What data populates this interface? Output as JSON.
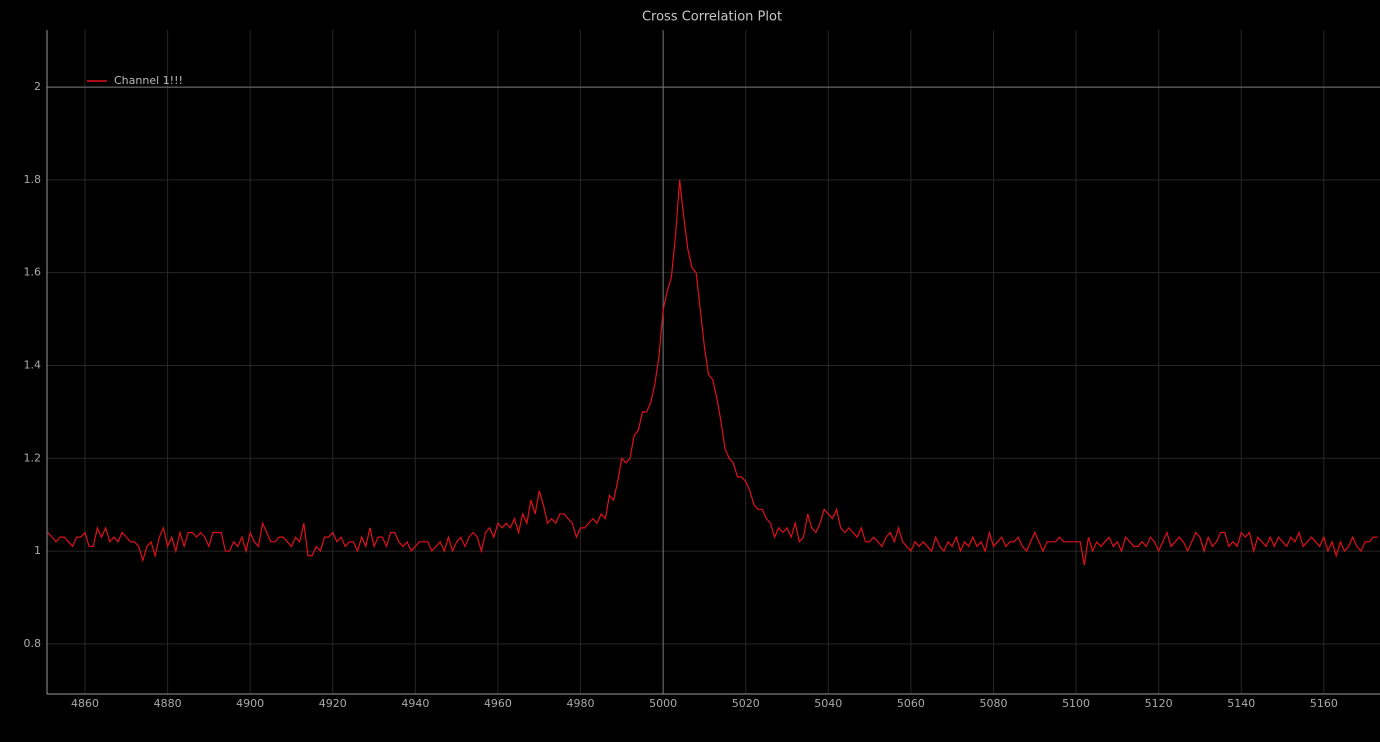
{
  "chart_data": {
    "type": "line",
    "title": "Cross Correlation Plot",
    "x": [
      4851,
      4852,
      4853,
      4854,
      4855,
      4856,
      4857,
      4858,
      4859,
      4860,
      4861,
      4862,
      4863,
      4864,
      4865,
      4866,
      4867,
      4868,
      4869,
      4870,
      4871,
      4872,
      4873,
      4874,
      4875,
      4876,
      4877,
      4878,
      4879,
      4880,
      4881,
      4882,
      4883,
      4884,
      4885,
      4886,
      4887,
      4888,
      4889,
      4890,
      4891,
      4892,
      4893,
      4894,
      4895,
      4896,
      4897,
      4898,
      4899,
      4900,
      4901,
      4902,
      4903,
      4904,
      4905,
      4906,
      4907,
      4908,
      4909,
      4910,
      4911,
      4912,
      4913,
      4914,
      4915,
      4916,
      4917,
      4918,
      4919,
      4920,
      4921,
      4922,
      4923,
      4924,
      4925,
      4926,
      4927,
      4928,
      4929,
      4930,
      4931,
      4932,
      4933,
      4934,
      4935,
      4936,
      4937,
      4938,
      4939,
      4940,
      4941,
      4942,
      4943,
      4944,
      4945,
      4946,
      4947,
      4948,
      4949,
      4950,
      4951,
      4952,
      4953,
      4954,
      4955,
      4956,
      4957,
      4958,
      4959,
      4960,
      4961,
      4962,
      4963,
      4964,
      4965,
      4966,
      4967,
      4968,
      4969,
      4970,
      4971,
      4972,
      4973,
      4974,
      4975,
      4976,
      4977,
      4978,
      4979,
      4980,
      4981,
      4982,
      4983,
      4984,
      4985,
      4986,
      4987,
      4988,
      4989,
      4990,
      4991,
      4992,
      4993,
      4994,
      4995,
      4996,
      4997,
      4998,
      4999,
      5000,
      5001,
      5002,
      5003,
      5004,
      5005,
      5006,
      5007,
      5008,
      5009,
      5010,
      5011,
      5012,
      5013,
      5014,
      5015,
      5016,
      5017,
      5018,
      5019,
      5020,
      5021,
      5022,
      5023,
      5024,
      5025,
      5026,
      5027,
      5028,
      5029,
      5030,
      5031,
      5032,
      5033,
      5034,
      5035,
      5036,
      5037,
      5038,
      5039,
      5040,
      5041,
      5042,
      5043,
      5044,
      5045,
      5046,
      5047,
      5048,
      5049,
      5050,
      5051,
      5052,
      5053,
      5054,
      5055,
      5056,
      5057,
      5058,
      5059,
      5060,
      5061,
      5062,
      5063,
      5064,
      5065,
      5066,
      5067,
      5068,
      5069,
      5070,
      5071,
      5072,
      5073,
      5074,
      5075,
      5076,
      5077,
      5078,
      5079,
      5080,
      5081,
      5082,
      5083,
      5084,
      5085,
      5086,
      5087,
      5088,
      5089,
      5090,
      5091,
      5092,
      5093,
      5094,
      5095,
      5096,
      5097,
      5098,
      5099,
      5100,
      5101,
      5102,
      5103,
      5104,
      5105,
      5106,
      5107,
      5108,
      5109,
      5110,
      5111,
      5112,
      5113,
      5114,
      5115,
      5116,
      5117,
      5118,
      5119,
      5120,
      5121,
      5122,
      5123,
      5124,
      5125,
      5126,
      5127,
      5128,
      5129,
      5130,
      5131,
      5132,
      5133,
      5134,
      5135,
      5136,
      5137,
      5138,
      5139,
      5140,
      5141,
      5142,
      5143,
      5144,
      5145,
      5146,
      5147,
      5148,
      5149,
      5150,
      5151,
      5152,
      5153,
      5154,
      5155,
      5156,
      5157,
      5158,
      5159,
      5160,
      5161,
      5162,
      5163,
      5164,
      5165,
      5166,
      5167,
      5168,
      5169,
      5170,
      5171,
      5172,
      5173
    ],
    "series": [
      {
        "name": "Channel 1!!!",
        "color": "#e0101a",
        "values": [
          1.04,
          1.03,
          1.02,
          1.03,
          1.03,
          1.02,
          1.01,
          1.03,
          1.03,
          1.04,
          1.01,
          1.01,
          1.05,
          1.03,
          1.05,
          1.02,
          1.03,
          1.02,
          1.04,
          1.03,
          1.02,
          1.02,
          1.01,
          0.98,
          1.01,
          1.02,
          0.99,
          1.03,
          1.05,
          1.01,
          1.03,
          1.0,
          1.04,
          1.01,
          1.04,
          1.04,
          1.03,
          1.04,
          1.03,
          1.01,
          1.04,
          1.04,
          1.04,
          1.0,
          1.0,
          1.02,
          1.01,
          1.03,
          1.0,
          1.04,
          1.02,
          1.01,
          1.06,
          1.04,
          1.02,
          1.02,
          1.03,
          1.03,
          1.02,
          1.01,
          1.03,
          1.02,
          1.06,
          0.99,
          0.99,
          1.01,
          1.0,
          1.03,
          1.03,
          1.04,
          1.02,
          1.03,
          1.01,
          1.02,
          1.02,
          1.0,
          1.03,
          1.01,
          1.05,
          1.01,
          1.03,
          1.03,
          1.01,
          1.04,
          1.04,
          1.02,
          1.01,
          1.02,
          1.0,
          1.01,
          1.02,
          1.02,
          1.02,
          1.0,
          1.01,
          1.02,
          1.0,
          1.03,
          1.0,
          1.02,
          1.03,
          1.01,
          1.03,
          1.04,
          1.03,
          1.0,
          1.04,
          1.05,
          1.03,
          1.06,
          1.05,
          1.06,
          1.05,
          1.07,
          1.04,
          1.08,
          1.06,
          1.11,
          1.08,
          1.13,
          1.1,
          1.06,
          1.07,
          1.06,
          1.08,
          1.08,
          1.07,
          1.06,
          1.03,
          1.05,
          1.05,
          1.06,
          1.07,
          1.06,
          1.08,
          1.07,
          1.12,
          1.11,
          1.15,
          1.2,
          1.19,
          1.2,
          1.25,
          1.26,
          1.3,
          1.3,
          1.32,
          1.36,
          1.42,
          1.52,
          1.56,
          1.59,
          1.68,
          1.8,
          1.72,
          1.65,
          1.61,
          1.6,
          1.52,
          1.44,
          1.38,
          1.37,
          1.33,
          1.28,
          1.22,
          1.2,
          1.19,
          1.16,
          1.16,
          1.15,
          1.13,
          1.1,
          1.09,
          1.09,
          1.07,
          1.06,
          1.03,
          1.05,
          1.04,
          1.05,
          1.03,
          1.06,
          1.02,
          1.03,
          1.08,
          1.05,
          1.04,
          1.06,
          1.09,
          1.08,
          1.07,
          1.09,
          1.05,
          1.04,
          1.05,
          1.04,
          1.03,
          1.05,
          1.02,
          1.02,
          1.03,
          1.02,
          1.01,
          1.03,
          1.04,
          1.02,
          1.05,
          1.02,
          1.01,
          1.0,
          1.02,
          1.01,
          1.02,
          1.01,
          1.0,
          1.03,
          1.01,
          1.0,
          1.02,
          1.01,
          1.03,
          1.0,
          1.02,
          1.01,
          1.03,
          1.01,
          1.02,
          1.0,
          1.04,
          1.01,
          1.02,
          1.03,
          1.01,
          1.02,
          1.02,
          1.03,
          1.01,
          1.0,
          1.02,
          1.04,
          1.02,
          1.0,
          1.02,
          1.02,
          1.02,
          1.03,
          1.02,
          1.02,
          1.02,
          1.02,
          1.02,
          0.97,
          1.03,
          1.0,
          1.02,
          1.01,
          1.02,
          1.03,
          1.01,
          1.02,
          1.0,
          1.03,
          1.02,
          1.01,
          1.01,
          1.02,
          1.01,
          1.03,
          1.02,
          1.0,
          1.02,
          1.04,
          1.01,
          1.02,
          1.03,
          1.02,
          1.0,
          1.02,
          1.04,
          1.03,
          1.0,
          1.03,
          1.01,
          1.02,
          1.04,
          1.04,
          1.01,
          1.02,
          1.01,
          1.04,
          1.03,
          1.04,
          1.0,
          1.03,
          1.02,
          1.01,
          1.03,
          1.01,
          1.03,
          1.02,
          1.01,
          1.03,
          1.02,
          1.04,
          1.01,
          1.02,
          1.03,
          1.02,
          1.01,
          1.03,
          1.0,
          1.02,
          0.99,
          1.02,
          1.0,
          1.01,
          1.03,
          1.01,
          1.0,
          1.02,
          1.02,
          1.03,
          1.03
        ]
      }
    ],
    "xlim": [
      4850.8,
      5173.6
    ],
    "ylim": [
      0.692,
      2.123
    ],
    "xticks": [
      4860,
      4880,
      4900,
      4920,
      4940,
      4960,
      4980,
      5000,
      5020,
      5040,
      5060,
      5080,
      5100,
      5120,
      5140,
      5160
    ],
    "yticks": [
      0.8,
      1,
      1.2,
      1.4,
      1.6,
      1.8,
      2
    ],
    "cursor": {
      "x": 5000,
      "y": 2
    },
    "grid": true,
    "legend": "top-left"
  }
}
